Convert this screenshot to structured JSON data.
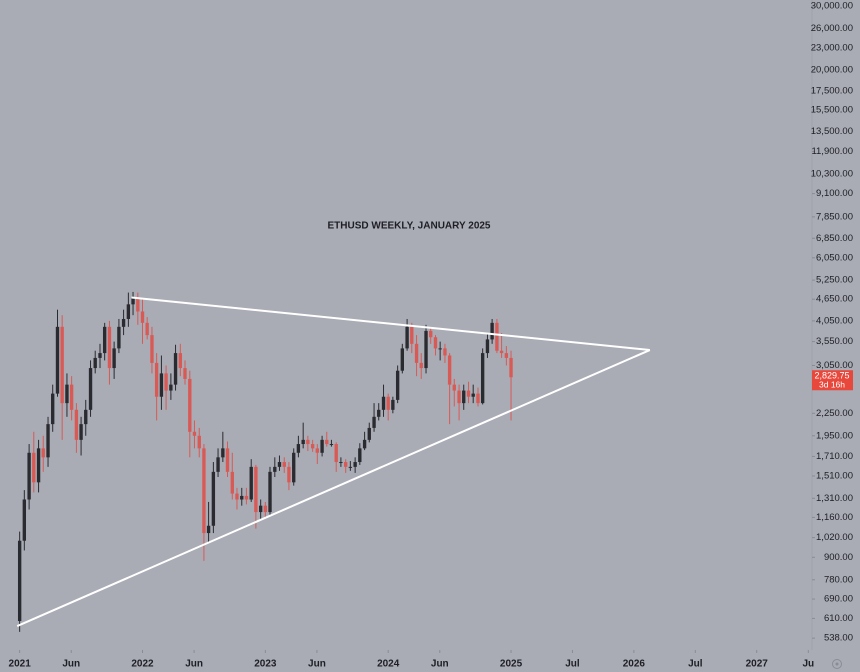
{
  "chart_data": {
    "type": "candlestick",
    "title": "ETHUSD WEEKLY, JANUARY 2025",
    "log_scale": true,
    "up_color": "#2a2b30",
    "down_color": "#d95a55",
    "trend_color": "#ffffff",
    "xlim": [
      2020.84,
      2027.45
    ],
    "ylim": [
      499,
      31200
    ],
    "xticks": [
      {
        "value": 2021,
        "label": "2021"
      },
      {
        "value": 2021.42,
        "label": "Jun"
      },
      {
        "value": 2022,
        "label": "2022"
      },
      {
        "value": 2022.42,
        "label": "Jun"
      },
      {
        "value": 2023,
        "label": "2023"
      },
      {
        "value": 2023.42,
        "label": "Jun"
      },
      {
        "value": 2024,
        "label": "2024"
      },
      {
        "value": 2024.42,
        "label": "Jun"
      },
      {
        "value": 2025,
        "label": "2025"
      },
      {
        "value": 2025.5,
        "label": "Jul"
      },
      {
        "value": 2026,
        "label": "2026"
      },
      {
        "value": 2026.5,
        "label": "Jul"
      },
      {
        "value": 2027,
        "label": "2027"
      },
      {
        "value": 2027.42,
        "label": "Ju"
      }
    ],
    "yticks": [
      {
        "value": 30000,
        "label": "30,000.00"
      },
      {
        "value": 26000,
        "label": "26,000.00"
      },
      {
        "value": 23000,
        "label": "23,000.00"
      },
      {
        "value": 20000,
        "label": "20,000.00"
      },
      {
        "value": 17500,
        "label": "17,500.00"
      },
      {
        "value": 15500,
        "label": "15,500.00"
      },
      {
        "value": 13500,
        "label": "13,500.00"
      },
      {
        "value": 11900,
        "label": "11,900.00"
      },
      {
        "value": 10300,
        "label": "10,300.00"
      },
      {
        "value": 9100,
        "label": "9,100.00"
      },
      {
        "value": 7850,
        "label": "7,850.00"
      },
      {
        "value": 6850,
        "label": "6,850.00"
      },
      {
        "value": 6050,
        "label": "6,050.00"
      },
      {
        "value": 5250,
        "label": "5,250.00"
      },
      {
        "value": 4650,
        "label": "4,650.00"
      },
      {
        "value": 4050,
        "label": "4,050.00"
      },
      {
        "value": 3550,
        "label": "3,550.00"
      },
      {
        "value": 3050,
        "label": "3,050.00"
      },
      {
        "value": 2250,
        "label": "2,250.00"
      },
      {
        "value": 1950,
        "label": "1,950.00"
      },
      {
        "value": 1710,
        "label": "1,710.00"
      },
      {
        "value": 1510,
        "label": "1,510.00"
      },
      {
        "value": 1310,
        "label": "1,310.00"
      },
      {
        "value": 1160,
        "label": "1,160.00"
      },
      {
        "value": 1020,
        "label": "1,020.00"
      },
      {
        "value": 900,
        "label": "900.00"
      },
      {
        "value": 780,
        "label": "780.00"
      },
      {
        "value": 690,
        "label": "690.00"
      },
      {
        "value": 610,
        "label": "610.00"
      },
      {
        "value": 538,
        "label": "538.00"
      }
    ],
    "last_price": {
      "value": 2829.75,
      "label": "2,829.75"
    },
    "countdown": "3d 16h",
    "trendlines": [
      {
        "points": [
          [
            2020.98,
            581
          ],
          [
            2026.13,
            3365
          ]
        ]
      },
      {
        "points": [
          [
            2021.91,
            4700
          ],
          [
            2026.13,
            3365
          ]
        ]
      }
    ],
    "x": [
      2021.0,
      2021.038,
      2021.077,
      2021.115,
      2021.154,
      2021.192,
      2021.231,
      2021.269,
      2021.308,
      2021.346,
      2021.385,
      2021.423,
      2021.462,
      2021.5,
      2021.538,
      2021.577,
      2021.615,
      2021.654,
      2021.692,
      2021.731,
      2021.769,
      2021.808,
      2021.846,
      2021.885,
      2021.923,
      2021.962,
      2022.0,
      2022.038,
      2022.077,
      2022.115,
      2022.154,
      2022.192,
      2022.231,
      2022.269,
      2022.308,
      2022.346,
      2022.385,
      2022.423,
      2022.462,
      2022.5,
      2022.538,
      2022.577,
      2022.615,
      2022.654,
      2022.692,
      2022.731,
      2022.769,
      2022.808,
      2022.846,
      2022.885,
      2022.923,
      2022.962,
      2023.0,
      2023.038,
      2023.077,
      2023.115,
      2023.154,
      2023.192,
      2023.231,
      2023.269,
      2023.308,
      2023.346,
      2023.385,
      2023.423,
      2023.462,
      2023.5,
      2023.538,
      2023.577,
      2023.615,
      2023.654,
      2023.692,
      2023.731,
      2023.769,
      2023.808,
      2023.846,
      2023.885,
      2023.923,
      2023.962,
      2024.0,
      2024.038,
      2024.077,
      2024.115,
      2024.154,
      2024.192,
      2024.231,
      2024.269,
      2024.308,
      2024.346,
      2024.385,
      2024.423,
      2024.462,
      2024.5,
      2024.538,
      2024.577,
      2024.615,
      2024.654,
      2024.692,
      2024.731,
      2024.769,
      2024.808,
      2024.846,
      2024.885,
      2024.923,
      2024.962,
      2025.0
    ],
    "open": [
      600,
      1000,
      1300,
      1750,
      1450,
      1800,
      1700,
      2100,
      2550,
      3900,
      2400,
      2700,
      2300,
      1900,
      2100,
      2300,
      3000,
      3200,
      3300,
      3900,
      3000,
      3400,
      3900,
      4100,
      4500,
      4700,
      4300,
      4000,
      3700,
      3100,
      2500,
      2900,
      2600,
      2700,
      3300,
      3000,
      2800,
      2000,
      1950,
      1800,
      1050,
      1100,
      1550,
      1700,
      1800,
      1550,
      1350,
      1300,
      1330,
      1300,
      1600,
      1200,
      1250,
      1200,
      1550,
      1600,
      1650,
      1600,
      1450,
      1750,
      1850,
      1900,
      1850,
      1800,
      1750,
      1900,
      1850,
      1850,
      1650,
      1650,
      1600,
      1600,
      1650,
      1800,
      1900,
      2050,
      2200,
      2300,
      2500,
      2300,
      2450,
      2950,
      3400,
      3900,
      3500,
      3100,
      3000,
      3800,
      3650,
      3400,
      3400,
      3250,
      2700,
      2600,
      2400,
      2600,
      2500,
      2550,
      2400,
      3300,
      3600,
      4000,
      3350,
      3300,
      3200
    ],
    "high": [
      1060,
      1380,
      1850,
      2000,
      1900,
      1950,
      2200,
      2700,
      4350,
      4200,
      2900,
      2850,
      2400,
      2200,
      2450,
      3150,
      3350,
      3500,
      4000,
      4050,
      3550,
      4100,
      4350,
      4850,
      4870,
      4850,
      4650,
      4150,
      3900,
      3300,
      3250,
      3050,
      2900,
      3480,
      3500,
      3150,
      2950,
      2150,
      2050,
      1850,
      1280,
      1650,
      1800,
      2000,
      1880,
      1750,
      1400,
      1400,
      1400,
      1680,
      1620,
      1300,
      1280,
      1600,
      1700,
      1720,
      1700,
      1650,
      1800,
      1950,
      2120,
      1950,
      1900,
      1850,
      1950,
      2000,
      1900,
      1870,
      1700,
      1680,
      1660,
      1700,
      1860,
      2000,
      2120,
      2400,
      2400,
      2700,
      2550,
      2500,
      3050,
      3500,
      4100,
      4000,
      3700,
      3300,
      3950,
      3900,
      3700,
      3550,
      3500,
      3300,
      2800,
      2700,
      2700,
      2750,
      2700,
      2650,
      3400,
      3750,
      4100,
      4100,
      3750,
      3450,
      3350
    ],
    "low": [
      560,
      940,
      1220,
      1360,
      1360,
      1550,
      1600,
      2000,
      2500,
      1900,
      2200,
      2150,
      1750,
      1720,
      1950,
      2200,
      2900,
      3000,
      3150,
      2700,
      2800,
      3300,
      3700,
      3900,
      4200,
      3950,
      3500,
      3600,
      2900,
      2150,
      2300,
      2300,
      2450,
      2600,
      2850,
      2700,
      1700,
      1800,
      1700,
      880,
      990,
      1050,
      1500,
      1650,
      1500,
      1300,
      1220,
      1250,
      1260,
      1280,
      1080,
      1150,
      1160,
      1180,
      1500,
      1560,
      1540,
      1380,
      1420,
      1700,
      1800,
      1770,
      1760,
      1630,
      1710,
      1820,
      1820,
      1550,
      1600,
      1540,
      1560,
      1540,
      1620,
      1780,
      1870,
      2000,
      2150,
      2200,
      2150,
      2250,
      2400,
      2900,
      3350,
      3300,
      2850,
      2800,
      2900,
      3500,
      3250,
      3150,
      3100,
      2100,
      2350,
      2150,
      2300,
      2400,
      2400,
      2350,
      2380,
      3200,
      3500,
      3300,
      3200,
      3050,
      2150
    ],
    "close": [
      1000,
      1300,
      1750,
      1450,
      1800,
      1700,
      2100,
      2550,
      3900,
      2400,
      2700,
      2300,
      1900,
      2100,
      2300,
      3000,
      3200,
      3300,
      3900,
      3000,
      3400,
      3900,
      4100,
      4500,
      4700,
      4300,
      4000,
      3700,
      3100,
      2500,
      2900,
      2600,
      2700,
      3300,
      3000,
      2800,
      2000,
      1950,
      1800,
      1050,
      1100,
      1550,
      1700,
      1800,
      1550,
      1350,
      1300,
      1330,
      1300,
      1600,
      1200,
      1250,
      1200,
      1550,
      1600,
      1650,
      1600,
      1450,
      1750,
      1850,
      1900,
      1850,
      1800,
      1750,
      1900,
      1850,
      1850,
      1650,
      1650,
      1600,
      1600,
      1650,
      1800,
      1900,
      2050,
      2200,
      2300,
      2500,
      2300,
      2450,
      2950,
      3400,
      3900,
      3500,
      3100,
      3000,
      3800,
      3650,
      3400,
      3400,
      3250,
      2700,
      2600,
      2400,
      2600,
      2500,
      2550,
      2400,
      3300,
      3600,
      4000,
      3350,
      3300,
      3200,
      2829.75
    ]
  }
}
